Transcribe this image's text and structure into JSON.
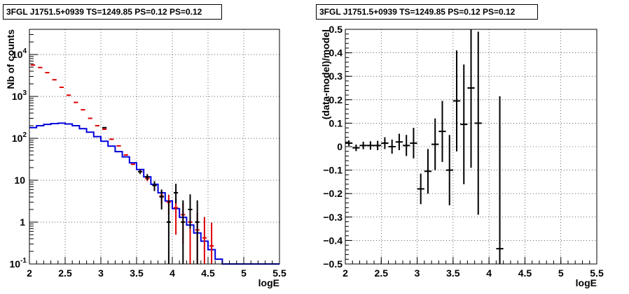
{
  "colors": {
    "data": "#000000",
    "model_total": "#dd0000",
    "model_source": "#0000dd",
    "grid": "#000000"
  },
  "chart_data": [
    {
      "type": "line",
      "title": "3FGL J1751.5+0939 TS=1249.85 PS=0.12 PS=0.12",
      "xlabel": "logE",
      "ylabel": "Nb of counts",
      "xlim": [
        2,
        5.5
      ],
      "ylim": [
        0.1,
        40000
      ],
      "yscale": "log",
      "grid": true,
      "xticks": [
        "2",
        "2.5",
        "3",
        "3.5",
        "4",
        "4.5",
        "5",
        "5.5"
      ],
      "yticks": [
        {
          "value": 0.1,
          "label": "10^-1"
        },
        {
          "value": 1,
          "label": "1"
        },
        {
          "value": 10,
          "label": "10"
        },
        {
          "value": 100,
          "label": "10^2"
        },
        {
          "value": 1000,
          "label": "10^3"
        },
        {
          "value": 10000,
          "label": "10^4"
        }
      ],
      "bin_edges": [
        2.0,
        2.1,
        2.2,
        2.3,
        2.4,
        2.5,
        2.6,
        2.7,
        2.8,
        2.9,
        3.0,
        3.1,
        3.2,
        3.3,
        3.4,
        3.5,
        3.6,
        3.7,
        3.8,
        3.9,
        4.0,
        4.1,
        4.2,
        4.3,
        4.4,
        4.5,
        4.6,
        4.7,
        4.8,
        4.9,
        5.0,
        5.1,
        5.2,
        5.3,
        5.4,
        5.5
      ],
      "series": [
        {
          "role": "model_source",
          "style": "step",
          "values": [
            180,
            200,
            215,
            225,
            230,
            220,
            200,
            170,
            140,
            110,
            85,
            65,
            48,
            36,
            26,
            18,
            12,
            8,
            5,
            3.2,
            2.1,
            1.3,
            0.85,
            0.55,
            0.35,
            0.22,
            0.13,
            0.1,
            0.1,
            0.1,
            0.1,
            0.1,
            0.1,
            0.1,
            0.1
          ]
        },
        {
          "role": "model_total",
          "style": "errorbar",
          "values": [
            5600,
            4900,
            3700,
            2500,
            1650,
            1070,
            720,
            480,
            300,
            200,
            165,
            95,
            66,
            40,
            24,
            16,
            11,
            7.5,
            4.2,
            3.0,
            2.2,
            1.5,
            1.0,
            0.65,
            0.42,
            0.27,
            null,
            null,
            null,
            null,
            null,
            null,
            null,
            null,
            null
          ],
          "errors": [
            [
              0,
              0
            ],
            [
              0,
              0
            ],
            [
              0,
              0
            ],
            [
              0,
              0
            ],
            [
              0,
              0
            ],
            [
              0,
              0
            ],
            [
              0,
              0
            ],
            [
              0,
              0
            ],
            [
              0,
              0
            ],
            [
              0,
              0
            ],
            [
              0,
              0
            ],
            [
              0,
              0
            ],
            [
              0,
              0
            ],
            [
              0,
              0
            ],
            [
              0,
              0
            ],
            [
              0.5,
              0.5
            ],
            [
              1.5,
              1.5
            ],
            [
              1.5,
              1.5
            ],
            [
              1.5,
              1.5
            ],
            [
              1.5,
              1.5
            ],
            [
              1.7,
              1.5
            ],
            [
              1.2,
              1.3
            ],
            [
              0.9,
              1.3
            ],
            [
              0.6,
              1.0
            ],
            [
              0.4,
              0.9
            ],
            [
              0.26,
              0.7
            ],
            null,
            null,
            null,
            null,
            null,
            null,
            null,
            null,
            null
          ]
        },
        {
          "role": "data",
          "style": "errorbar",
          "values": [
            null,
            null,
            null,
            null,
            null,
            null,
            null,
            null,
            null,
            null,
            180,
            null,
            null,
            null,
            null,
            16,
            12,
            7.5,
            4,
            1.0,
            5,
            1.0,
            2,
            1.0,
            null,
            null,
            null,
            null,
            null,
            null,
            null,
            null,
            null,
            null,
            null
          ],
          "errors": [
            null,
            null,
            null,
            null,
            null,
            null,
            null,
            null,
            null,
            null,
            [
              0,
              0
            ],
            null,
            null,
            null,
            null,
            [
              2,
              2
            ],
            [
              2,
              2
            ],
            [
              2,
              2
            ],
            [
              2,
              2
            ],
            [
              0.9,
              2.3
            ],
            [
              2.2,
              3.2
            ],
            [
              0.9,
              2.3
            ],
            [
              1.3,
              2.6
            ],
            [
              0.9,
              2.3
            ],
            null,
            null,
            null,
            null,
            null,
            null,
            null,
            null,
            null,
            null,
            null
          ]
        }
      ]
    },
    {
      "type": "scatter",
      "title": "3FGL J1751.5+0939 TS=1249.85 PS=0.12 PS=0.12",
      "xlabel": "logE",
      "ylabel": "(data-model)/model",
      "xlim": [
        2,
        5.5
      ],
      "ylim": [
        -0.5,
        0.5
      ],
      "grid": true,
      "xticks": [
        "2",
        "2.5",
        "3",
        "3.5",
        "4",
        "4.5",
        "5",
        "5.5"
      ],
      "yticks": [
        "-0.5",
        "-0.4",
        "-0.3",
        "-0.2",
        "-0.1",
        "0",
        "0.1",
        "0.2",
        "0.3",
        "0.4",
        "0.5"
      ],
      "points": [
        {
          "x": 2.05,
          "y": 0.015,
          "xerr": 0.05,
          "yerr": 0.012
        },
        {
          "x": 2.15,
          "y": -0.005,
          "xerr": 0.05,
          "yerr": 0.014
        },
        {
          "x": 2.25,
          "y": 0.005,
          "xerr": 0.05,
          "yerr": 0.016
        },
        {
          "x": 2.35,
          "y": 0.005,
          "xerr": 0.05,
          "yerr": 0.018
        },
        {
          "x": 2.45,
          "y": 0.005,
          "xerr": 0.05,
          "yerr": 0.02
        },
        {
          "x": 2.55,
          "y": 0.015,
          "xerr": 0.05,
          "yerr": 0.025
        },
        {
          "x": 2.65,
          "y": 0.0,
          "xerr": 0.05,
          "yerr": 0.03
        },
        {
          "x": 2.75,
          "y": 0.02,
          "xerr": 0.05,
          "yerr": 0.035
        },
        {
          "x": 2.85,
          "y": 0.005,
          "xerr": 0.05,
          "yerr": 0.045
        },
        {
          "x": 2.95,
          "y": 0.015,
          "xerr": 0.05,
          "yerr": 0.065
        },
        {
          "x": 3.05,
          "y": -0.18,
          "xerr": 0.05,
          "yerr": 0.065
        },
        {
          "x": 3.15,
          "y": -0.105,
          "xerr": 0.05,
          "yerr": 0.095
        },
        {
          "x": 3.25,
          "y": 0.01,
          "xerr": 0.05,
          "yerr": 0.11
        },
        {
          "x": 3.35,
          "y": 0.065,
          "xerr": 0.05,
          "yerr": 0.13
        },
        {
          "x": 3.45,
          "y": -0.1,
          "xerr": 0.05,
          "yerr": 0.15
        },
        {
          "x": 3.55,
          "y": 0.195,
          "xerr": 0.05,
          "yerr": 0.215
        },
        {
          "x": 3.65,
          "y": 0.095,
          "xerr": 0.05,
          "yerr": 0.255
        },
        {
          "x": 3.75,
          "y": 0.25,
          "xerr": 0.05,
          "yerr": 0.34
        },
        {
          "x": 3.85,
          "y": 0.1,
          "xerr": 0.05,
          "yerr": 0.39
        },
        {
          "x": 4.15,
          "y": -0.435,
          "xerr": 0.05,
          "yerr": 0.65
        }
      ]
    }
  ]
}
